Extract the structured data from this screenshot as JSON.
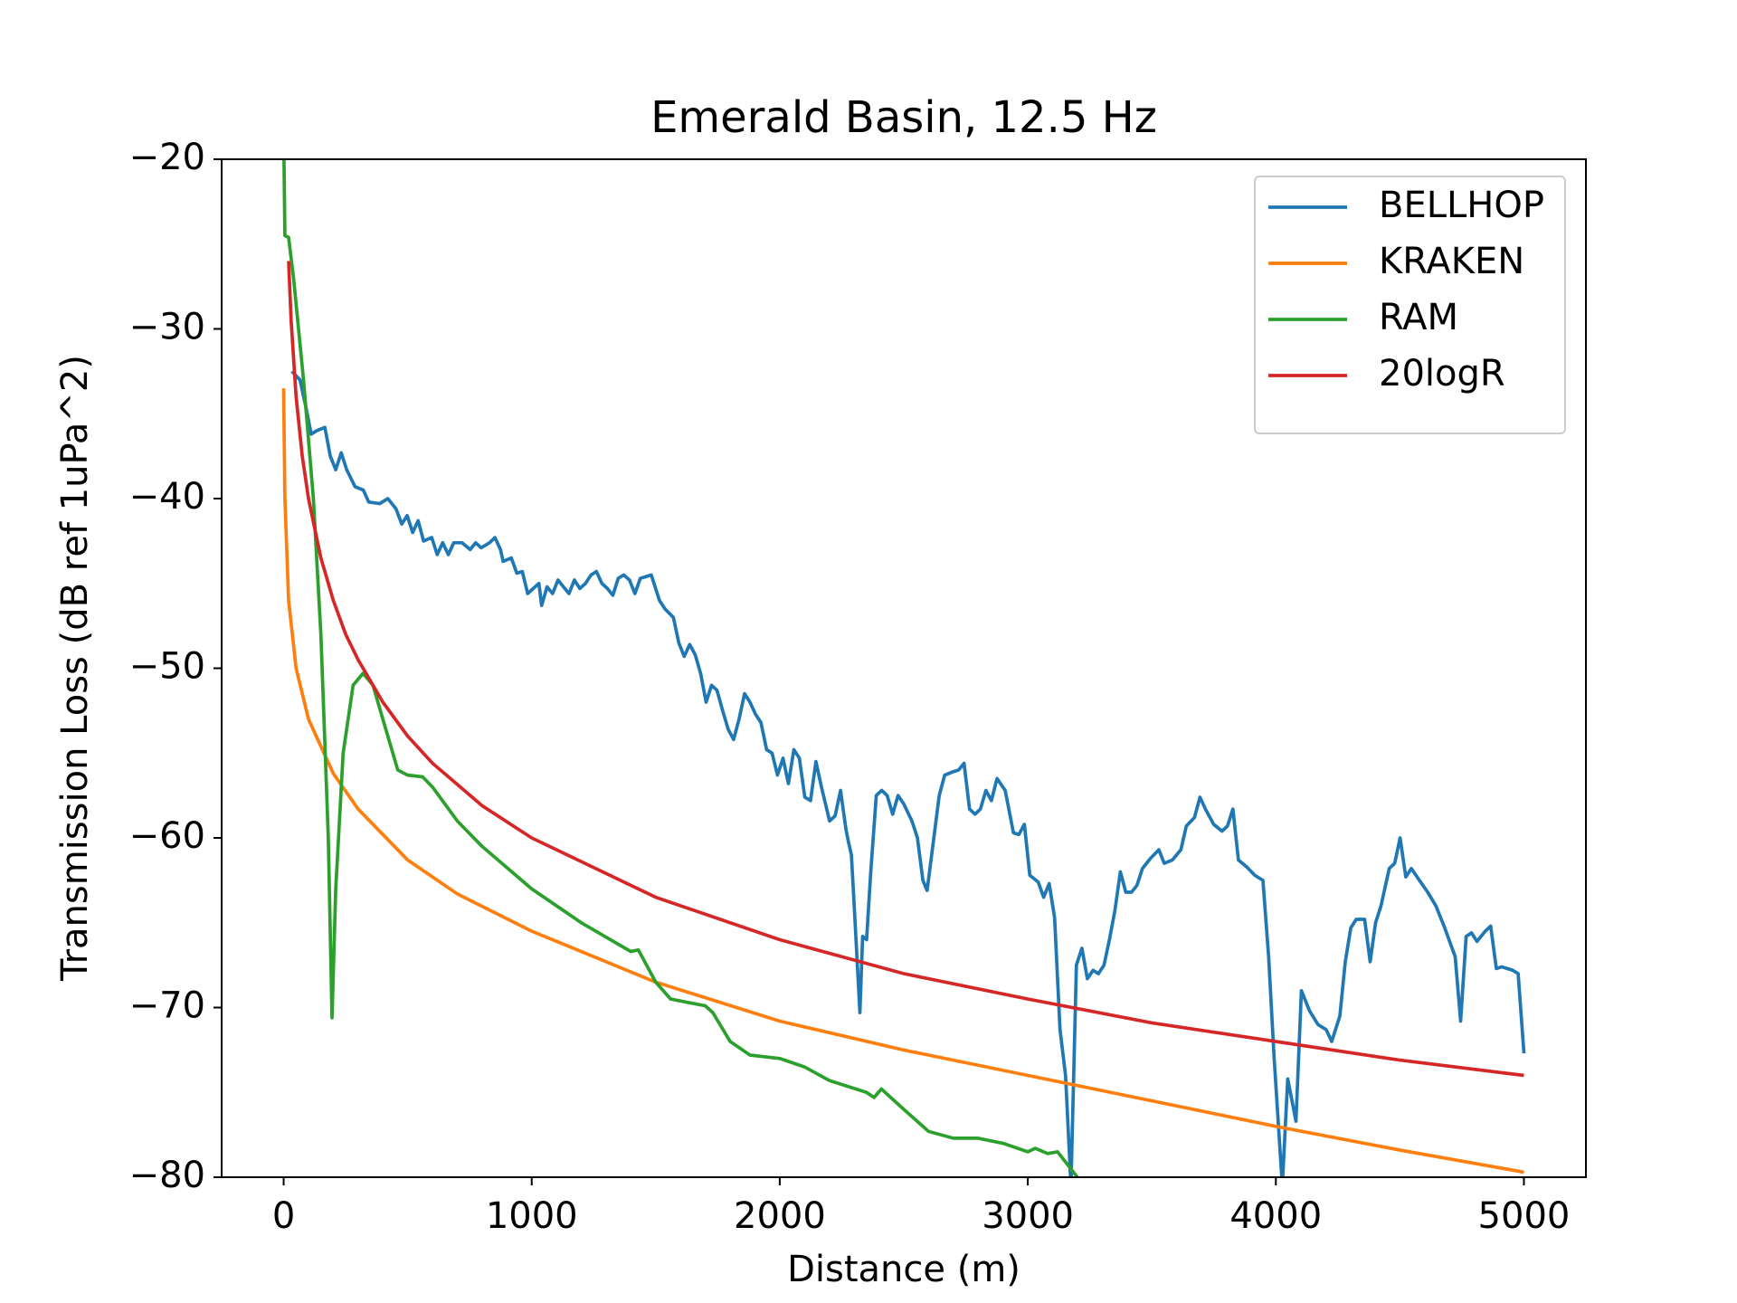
{
  "chart_data": {
    "type": "line",
    "title": "Emerald Basin, 12.5 Hz",
    "x_label": "Distance (m)",
    "y_label": "Transmission Loss (dB ref 1uPa^2)",
    "xlim": [
      -250,
      5250
    ],
    "ylim": [
      -80,
      -20
    ],
    "xticks": [
      0,
      1000,
      2000,
      3000,
      4000,
      5000
    ],
    "yticks": [
      -20,
      -30,
      -40,
      -50,
      -60,
      -70,
      -80
    ],
    "grid": false,
    "legend": "upper right",
    "series": [
      {
        "name": "BELLHOP",
        "color": "#1f77b4",
        "x": [
          33,
          66,
          88,
          111,
          133,
          166,
          188,
          210,
          232,
          254,
          288,
          321,
          343,
          387,
          420,
          453,
          476,
          498,
          520,
          542,
          564,
          597,
          619,
          641,
          664,
          686,
          719,
          752,
          774,
          796,
          830,
          852,
          874,
          885,
          918,
          940,
          962,
          984,
          1006,
          1029,
          1040,
          1062,
          1084,
          1106,
          1128,
          1150,
          1172,
          1194,
          1217,
          1239,
          1261,
          1283,
          1305,
          1327,
          1349,
          1371,
          1394,
          1416,
          1438,
          1460,
          1482,
          1515,
          1537,
          1571,
          1593,
          1615,
          1637,
          1659,
          1681,
          1703,
          1725,
          1747,
          1770,
          1792,
          1814,
          1836,
          1858,
          1880,
          1902,
          1924,
          1947,
          1969,
          1991,
          2013,
          2035,
          2057,
          2079,
          2101,
          2124,
          2146,
          2168,
          2201,
          2223,
          2245,
          2267,
          2278,
          2289,
          2300,
          2323,
          2334,
          2350,
          2367,
          2389,
          2411,
          2433,
          2455,
          2477,
          2500,
          2533,
          2555,
          2577,
          2594,
          2621,
          2643,
          2665,
          2699,
          2721,
          2743,
          2765,
          2787,
          2809,
          2831,
          2853,
          2876,
          2909,
          2942,
          2964,
          2986,
          3008,
          3042,
          3064,
          3086,
          3108,
          3130,
          3152,
          3174,
          3196,
          3218,
          3240,
          3263,
          3285,
          3307,
          3329,
          3351,
          3373,
          3395,
          3418,
          3440,
          3462,
          3495,
          3528,
          3550,
          3583,
          3617,
          3639,
          3672,
          3694,
          3716,
          3749,
          3783,
          3805,
          3827,
          3849,
          3882,
          3915,
          3948,
          3971,
          3993,
          4026,
          4048,
          4081,
          4103,
          4136,
          4170,
          4203,
          4225,
          4258,
          4280,
          4302,
          4324,
          4358,
          4380,
          4402,
          4424,
          4457,
          4479,
          4501,
          4524,
          4546,
          4579,
          4612,
          4645,
          4678,
          4723,
          4745,
          4767,
          4789,
          4811,
          4844,
          4866,
          4889,
          4911,
          4955,
          4977,
          5000
        ],
        "values": [
          -32.5,
          -33,
          -34.5,
          -36.2,
          -36,
          -35.8,
          -37.5,
          -38.3,
          -37.3,
          -38.3,
          -39.3,
          -39.5,
          -40.2,
          -40.3,
          -40,
          -40.6,
          -41.5,
          -41,
          -42,
          -41.3,
          -42.5,
          -42.3,
          -43.3,
          -42.6,
          -43.3,
          -42.6,
          -42.6,
          -43,
          -42.6,
          -42.9,
          -42.6,
          -42.3,
          -43,
          -43.7,
          -43.5,
          -44.4,
          -44.3,
          -45.6,
          -45.3,
          -45,
          -46.3,
          -45.2,
          -45.6,
          -44.8,
          -45.2,
          -45.6,
          -44.8,
          -45.3,
          -45,
          -44.5,
          -44.3,
          -45,
          -45.3,
          -45.7,
          -44.7,
          -44.5,
          -44.8,
          -45.6,
          -44.7,
          -44.6,
          -44.5,
          -46,
          -46.5,
          -47,
          -48.5,
          -49.3,
          -48.6,
          -49.2,
          -50.3,
          -52,
          -51,
          -51.3,
          -52.5,
          -53.6,
          -54.2,
          -53,
          -51.5,
          -52,
          -52.7,
          -53.2,
          -54.8,
          -55,
          -56.3,
          -55.3,
          -56.8,
          -54.8,
          -55.3,
          -57.6,
          -57.8,
          -55.5,
          -57,
          -59,
          -58.7,
          -57.2,
          -59.5,
          -60.3,
          -61,
          -64,
          -70.3,
          -65.8,
          -66,
          -62,
          -57.5,
          -57.2,
          -57.5,
          -58.6,
          -57.5,
          -58,
          -59,
          -60,
          -62.5,
          -63.1,
          -60,
          -57.5,
          -56.3,
          -56.1,
          -56,
          -55.6,
          -58.3,
          -58.6,
          -58.3,
          -57.2,
          -57.8,
          -56.5,
          -57.2,
          -59.7,
          -59.8,
          -59.2,
          -62.2,
          -62.6,
          -63.5,
          -62.7,
          -64.7,
          -71.3,
          -74,
          -80.5,
          -67.5,
          -66.5,
          -68.3,
          -67.8,
          -68,
          -67.5,
          -66,
          -64.3,
          -62,
          -63.2,
          -63.2,
          -62.8,
          -61.8,
          -61.2,
          -60.7,
          -61.5,
          -61.3,
          -60.7,
          -59.3,
          -58.8,
          -57.6,
          -58.3,
          -59.2,
          -59.6,
          -59.3,
          -58.3,
          -61.3,
          -61.7,
          -62.2,
          -62.5,
          -67,
          -73,
          -80.5,
          -74.2,
          -76.7,
          -69,
          -70.2,
          -71,
          -71.3,
          -72,
          -70.5,
          -67.3,
          -65.3,
          -64.8,
          -64.8,
          -67.3,
          -65,
          -64,
          -61.8,
          -61.5,
          -60,
          -62.3,
          -61.8,
          -62.5,
          -63.2,
          -64,
          -65.2,
          -67,
          -70.8,
          -65.8,
          -65.6,
          -66.1,
          -65.5,
          -65.2,
          -67.7,
          -67.6,
          -67.8,
          -68,
          -72.7
        ]
      },
      {
        "name": "KRAKEN",
        "color": "#ff7f0e",
        "x": [
          0,
          5,
          20,
          50,
          100,
          200,
          300,
          500,
          700,
          1000,
          1500,
          2000,
          2500,
          3000,
          3500,
          4000,
          4500,
          5000
        ],
        "values": [
          -33.5,
          -40,
          -46,
          -50,
          -53,
          -56.2,
          -58.3,
          -61.3,
          -63.3,
          -65.5,
          -68.5,
          -70.8,
          -72.5,
          -74,
          -75.5,
          -77,
          -78.4,
          -79.7
        ]
      },
      {
        "name": "RAM",
        "color": "#2ca02c",
        "x": [
          0,
          5,
          20,
          40,
          80,
          120,
          150,
          180,
          195,
          210,
          240,
          280,
          320,
          360,
          400,
          440,
          460,
          500,
          560,
          600,
          700,
          800,
          1000,
          1200,
          1400,
          1430,
          1500,
          1560,
          1700,
          1730,
          1800,
          1880,
          2000,
          2100,
          2200,
          2350,
          2380,
          2410,
          2500,
          2600,
          2700,
          2800,
          2900,
          3000,
          3030,
          3080,
          3120,
          3200
        ],
        "values": [
          -18,
          -24.5,
          -24.6,
          -27,
          -33,
          -40,
          -48,
          -60,
          -70.6,
          -63,
          -55,
          -51,
          -50.3,
          -51,
          -53,
          -55,
          -56,
          -56.3,
          -56.4,
          -57,
          -59,
          -60.5,
          -63,
          -65,
          -66.7,
          -66.6,
          -68.5,
          -69.5,
          -69.9,
          -70.3,
          -72,
          -72.8,
          -73,
          -73.5,
          -74.3,
          -75,
          -75.3,
          -74.8,
          -76,
          -77.3,
          -77.7,
          -77.7,
          -78,
          -78.5,
          -78.3,
          -78.6,
          -78.5,
          -80
        ]
      },
      {
        "name": "20logR",
        "color": "#d62728",
        "x": [
          20,
          30,
          50,
          75,
          100,
          150,
          200,
          250,
          300,
          400,
          500,
          600,
          800,
          1000,
          1500,
          2000,
          2500,
          3000,
          3500,
          4000,
          4500,
          5000
        ],
        "values": [
          -26,
          -29.5,
          -34,
          -37.5,
          -40,
          -43.5,
          -46,
          -48,
          -49.5,
          -52,
          -54,
          -55.6,
          -58.1,
          -60,
          -63.5,
          -66,
          -68,
          -69.5,
          -70.9,
          -72,
          -73.1,
          -74
        ]
      }
    ]
  }
}
